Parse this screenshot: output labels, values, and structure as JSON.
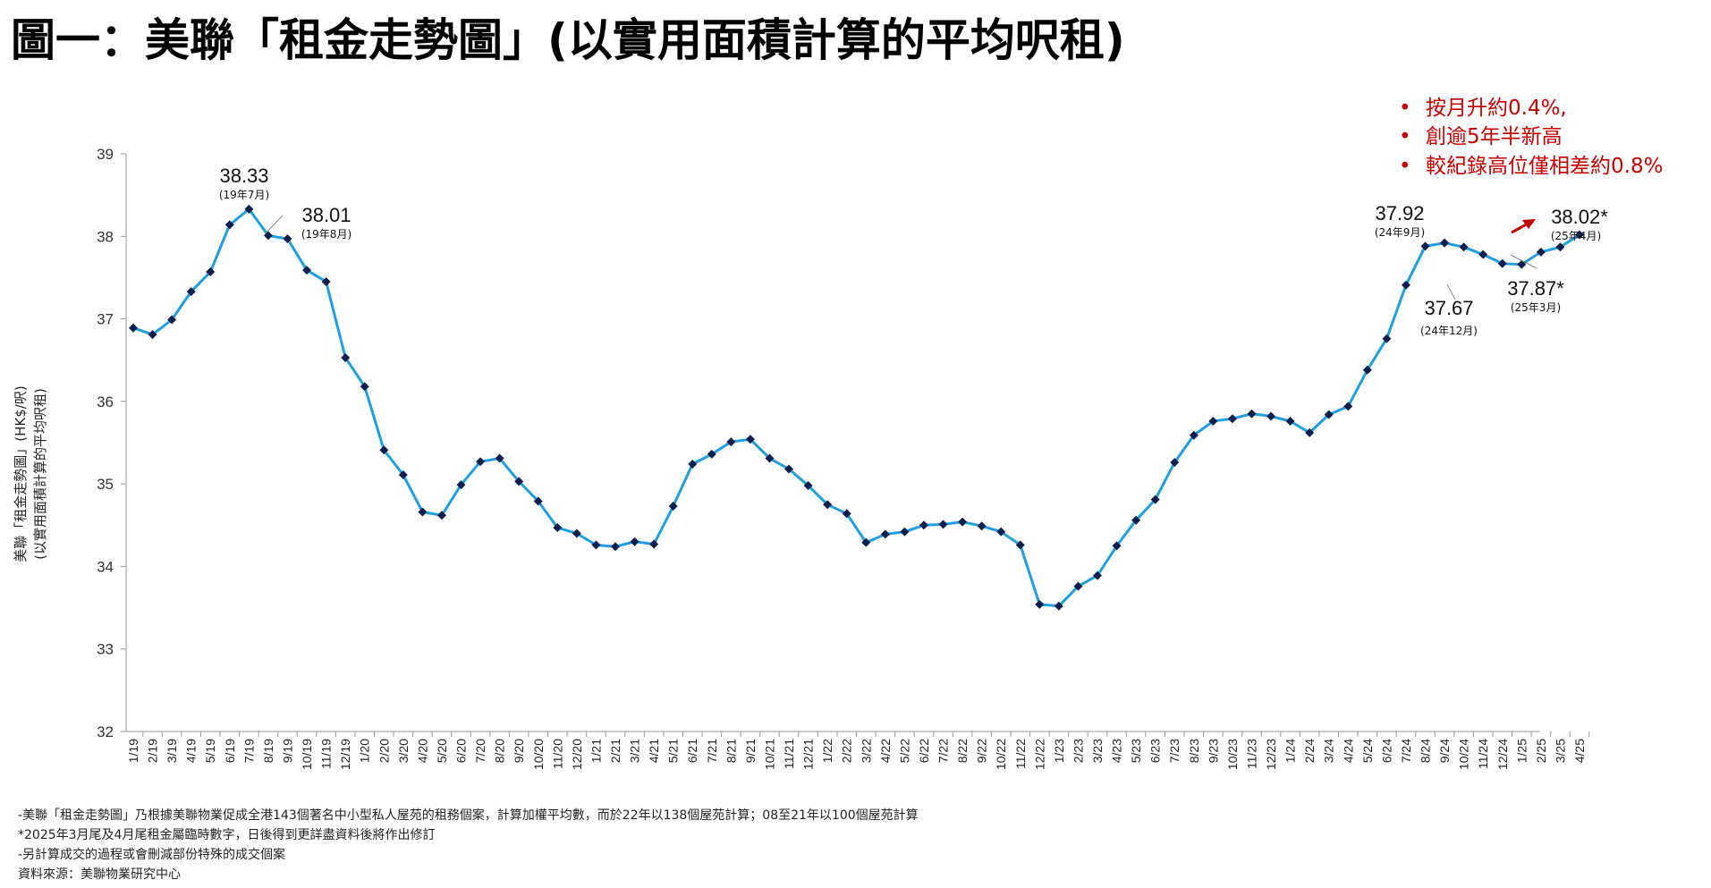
{
  "title": "圖一：美聯「租金走勢圖」(以實用面積計算的平均呎租)",
  "highlights": [
    "按月升約0.4%,",
    "創逾5年半新高",
    "較紀錄高位僅相差約0.8%"
  ],
  "annotations": [
    {
      "value": "38.33",
      "period": "(19年7月)"
    },
    {
      "value": "38.01",
      "period": "(19年8月)"
    },
    {
      "value": "37.92",
      "period": "(24年9月)"
    },
    {
      "value": "37.67",
      "period": "(24年12月)"
    },
    {
      "value": "37.87*",
      "period": "(25年3月)"
    },
    {
      "value": "38.02*",
      "period": "(25年4月)"
    }
  ],
  "notes": [
    "-美聯「租金走勢圖」乃根據美聯物業促成全港143個著名中小型私人屋苑的租務個案，計算加權平均數，而於22年以138個屋苑計算；08至21年以100個屋苑計算",
    "*2025年3月尾及4月尾租金屬臨時數字，日後得到更詳盡資料後將作出修訂",
    "-另計算成交的過程或會刪減部份特殊的成交個案",
    "資料來源：美聯物業研究中心"
  ],
  "chart_data": {
    "type": "line",
    "ylabel_line1": "美聯「租金走勢圖」(HK$/呎)",
    "ylabel_line2": "(以實用面積計算的平均呎租)",
    "ylim": [
      32,
      39
    ],
    "yticks": [
      "32",
      "33",
      "34",
      "35",
      "36",
      "37",
      "38",
      "39"
    ],
    "grid": false,
    "categories": [
      "1/19",
      "2/19",
      "3/19",
      "4/19",
      "5/19",
      "6/19",
      "7/19",
      "8/19",
      "9/19",
      "10/19",
      "11/19",
      "12/19",
      "1/20",
      "2/20",
      "3/20",
      "4/20",
      "5/20",
      "6/20",
      "7/20",
      "8/20",
      "9/20",
      "10/20",
      "11/20",
      "12/20",
      "1/21",
      "2/21",
      "3/21",
      "4/21",
      "5/21",
      "6/21",
      "7/21",
      "8/21",
      "9/21",
      "10/21",
      "11/21",
      "12/21",
      "1/22",
      "2/22",
      "3/22",
      "4/22",
      "5/22",
      "6/22",
      "7/22",
      "8/22",
      "9/22",
      "10/22",
      "11/22",
      "12/22",
      "1/23",
      "2/23",
      "3/23",
      "4/23",
      "5/23",
      "6/23",
      "7/23",
      "8/23",
      "9/23",
      "10/23",
      "11/23",
      "12/23",
      "1/24",
      "2/24",
      "3/24",
      "4/24",
      "5/24",
      "6/24",
      "7/24",
      "8/24",
      "9/24",
      "10/24",
      "11/24",
      "12/24",
      "1/25",
      "2/25",
      "3/25",
      "4/25"
    ],
    "series": [
      {
        "color": "#1f9fe0",
        "marker_color": "#0d1f4d",
        "values": [
          36.89,
          36.81,
          36.99,
          37.33,
          37.57,
          38.14,
          38.33,
          38.01,
          37.97,
          37.59,
          37.45,
          36.53,
          36.18,
          35.41,
          35.11,
          34.66,
          34.62,
          34.99,
          35.27,
          35.31,
          35.03,
          34.79,
          34.47,
          34.4,
          34.26,
          34.24,
          34.3,
          34.27,
          34.73,
          35.24,
          35.36,
          35.51,
          35.54,
          35.31,
          35.18,
          34.98,
          34.75,
          34.64,
          34.29,
          34.39,
          34.42,
          34.5,
          34.51,
          34.54,
          34.49,
          34.42,
          34.26,
          33.54,
          33.52,
          33.76,
          33.89,
          34.25,
          34.56,
          34.81,
          35.26,
          35.59,
          35.76,
          35.79,
          35.85,
          35.82,
          35.76,
          35.62,
          35.84,
          35.94,
          36.38,
          36.76,
          37.41,
          37.88,
          37.92,
          37.87,
          37.78,
          37.67,
          37.66,
          37.81,
          37.87,
          38.02
        ]
      }
    ]
  }
}
